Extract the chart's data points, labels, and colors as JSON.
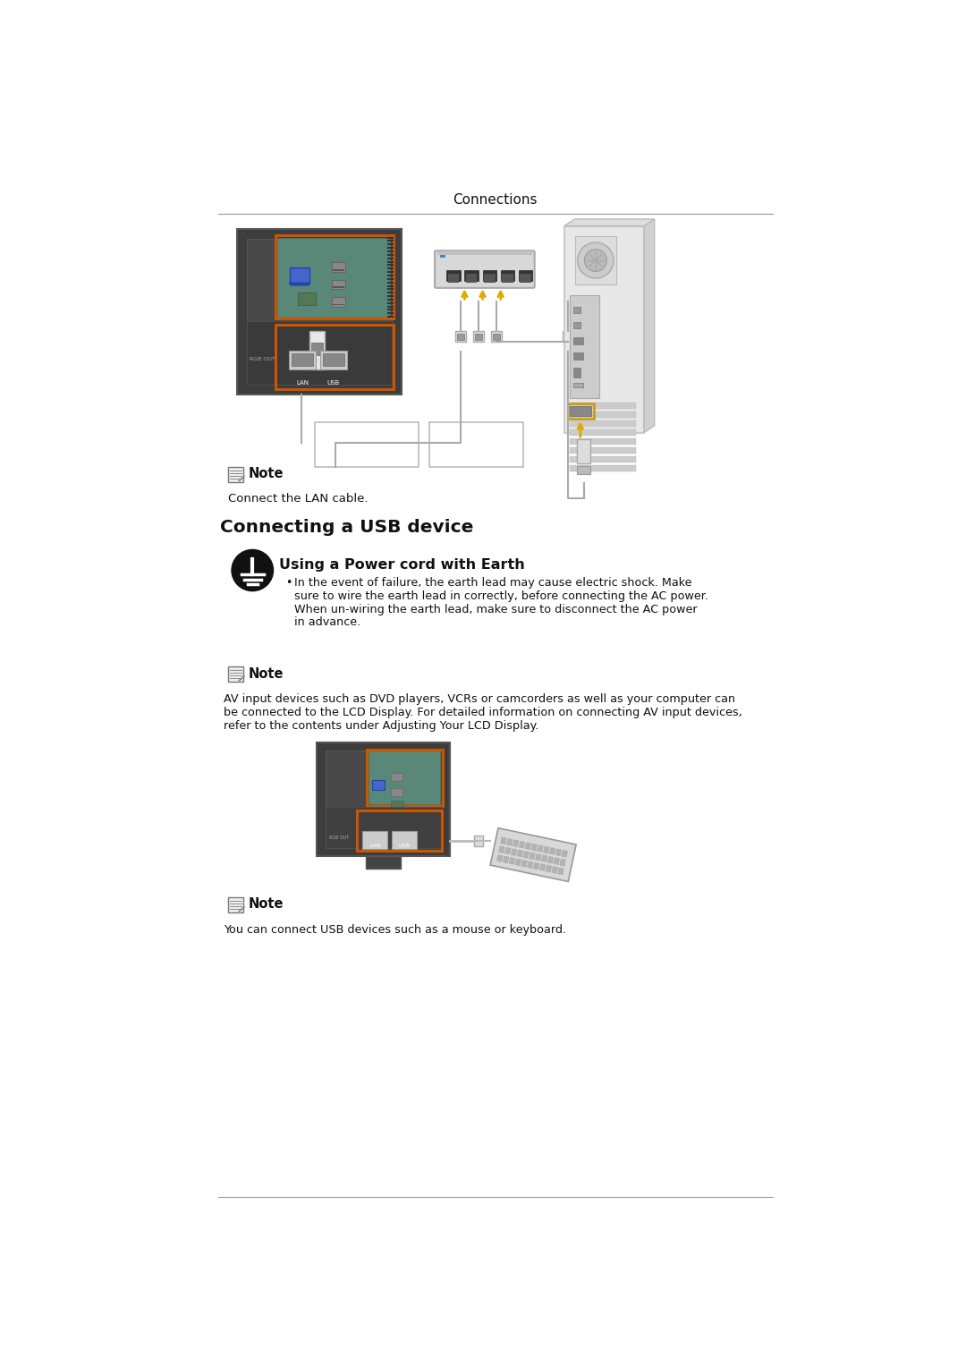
{
  "page_title": "Connections",
  "bg_color": "#ffffff",
  "line_color": "#999999",
  "text_color": "#111111",
  "note1_text": "Connect the LAN cable.",
  "section_heading": "Connecting a USB device",
  "warning_heading": "Using a Power cord with Earth",
  "warning_lines": [
    "In the event of failure, the earth lead may cause electric shock. Make",
    "sure to wire the earth lead in correctly, before connecting the AC power.",
    "When un-wiring the earth lead, make sure to disconnect the AC power",
    "in advance."
  ],
  "note2_lines": [
    "AV input devices such as DVD players, VCRs or camcorders as well as your computer can",
    "be connected to the LCD Display. For detailed information on connecting AV input devices,",
    "refer to the contents under Adjusting Your LCD Display."
  ],
  "note3_text": "You can connect USB devices such as a mouse or keyboard."
}
